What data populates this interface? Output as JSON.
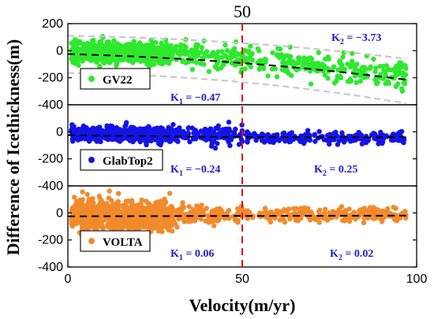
{
  "chart_data": {
    "type": "scatter",
    "top_label": "50",
    "xlabel": "Velocity(m/yr)",
    "ylabel": "Difference of Icethickness(m)",
    "xlim": [
      0,
      100
    ],
    "x_ticks": [
      "0",
      "50",
      "100"
    ],
    "x_tick_values": [
      0,
      50,
      100
    ],
    "vline_x": 50,
    "k_color": "#1f1fc8",
    "vline_color": "#e01010",
    "panels": [
      {
        "legend": "GV22",
        "color": "#2ee82e",
        "ylim": [
          -400,
          200
        ],
        "y_ticks": [
          "200",
          "0",
          "-200",
          "-400"
        ],
        "y_tick_values": [
          200,
          0,
          -200,
          -400
        ],
        "k1_sub": "1",
        "k1_value": "= −0.47",
        "k2_sub": "2",
        "k2_value": "= −3.73",
        "trend": [
          [
            0,
            -25
          ],
          [
            50,
            -60
          ],
          [
            97,
            -215
          ]
        ],
        "envelope_upper": [
          [
            0,
            110
          ],
          [
            50,
            75
          ],
          [
            97,
            -60
          ]
        ],
        "envelope_lower": [
          [
            0,
            -165
          ],
          [
            50,
            -200
          ],
          [
            97,
            -390
          ]
        ],
        "clusters": [
          {
            "x": [
              1,
              30
            ],
            "center": [
              [
                0,
                -10
              ],
              [
                30,
                -25
              ]
            ],
            "spread": 70,
            "n": 700
          },
          {
            "x": [
              30,
              50
            ],
            "center": [
              [
                30,
                -20
              ],
              [
                50,
                -55
              ]
            ],
            "spread": 85,
            "n": 110
          },
          {
            "x": [
              50,
              97
            ],
            "center": [
              [
                50,
                -60
              ],
              [
                97,
                -190
              ]
            ],
            "spread": 90,
            "n": 240
          }
        ]
      },
      {
        "legend": "GlabTop2",
        "color": "#1414e6",
        "ylim": [
          -400,
          200
        ],
        "y_ticks": [
          "0",
          "-200",
          "-400"
        ],
        "y_tick_values": [
          0,
          -200,
          -400
        ],
        "k1_sub": "1",
        "k1_value": "= −0.24",
        "k2_sub": "2",
        "k2_value": "= 0.25",
        "trend": [
          [
            0,
            -25
          ],
          [
            50,
            -45
          ],
          [
            97,
            -40
          ]
        ],
        "clusters": [
          {
            "x": [
              1,
              30
            ],
            "center": [
              [
                0,
                -15
              ],
              [
                30,
                -20
              ]
            ],
            "spread": 45,
            "n": 700
          },
          {
            "x": [
              30,
              50
            ],
            "center": [
              [
                30,
                -15
              ],
              [
                50,
                -30
              ]
            ],
            "spread": 55,
            "n": 140
          },
          {
            "x": [
              50,
              97
            ],
            "center": [
              [
                50,
                -40
              ],
              [
                97,
                -45
              ]
            ],
            "spread": 40,
            "n": 220
          }
        ]
      },
      {
        "legend": "VOLTA",
        "color": "#f28a2c",
        "ylim": [
          -400,
          200
        ],
        "y_ticks": [
          "0",
          "-200",
          "-400"
        ],
        "y_tick_values": [
          0,
          -200,
          -400
        ],
        "k1_sub": "1",
        "k1_value": "= 0.06",
        "k2_sub": "2",
        "k2_value": "= 0.02",
        "trend": [
          [
            0,
            -25
          ],
          [
            50,
            -22
          ],
          [
            97,
            -20
          ]
        ],
        "clusters": [
          {
            "x": [
              1,
              30
            ],
            "center": [
              [
                0,
                -20
              ],
              [
                30,
                -20
              ]
            ],
            "spread": 95,
            "n": 950
          },
          {
            "x": [
              30,
              50
            ],
            "center": [
              [
                30,
                -15
              ],
              [
                50,
                -15
              ]
            ],
            "spread": 60,
            "n": 130
          },
          {
            "x": [
              50,
              97
            ],
            "center": [
              [
                50,
                -10
              ],
              [
                97,
                -15
              ]
            ],
            "spread": 45,
            "n": 240
          }
        ]
      }
    ]
  }
}
